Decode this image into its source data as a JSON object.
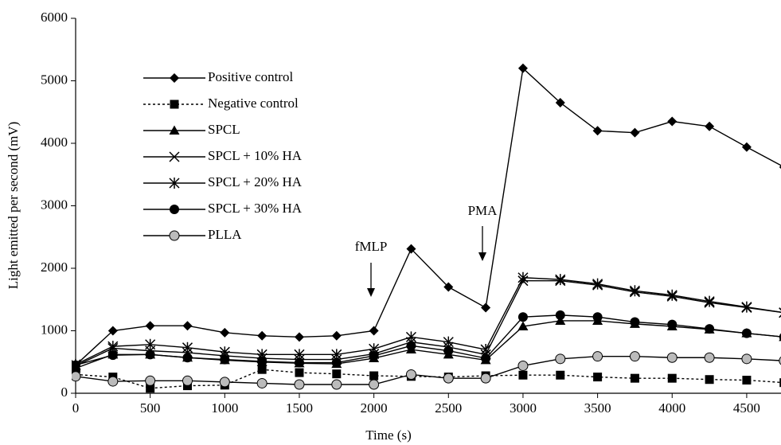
{
  "chart_data": {
    "type": "line",
    "x_label": "Time (s)",
    "y_label": "Light emitted per second (mV)",
    "x": [
      0,
      250,
      500,
      750,
      1000,
      1250,
      1500,
      1750,
      2000,
      2250,
      2500,
      2750,
      3000,
      3250,
      3500,
      3750,
      4000,
      4250,
      4500,
      4750
    ],
    "xlim": [
      0,
      4730
    ],
    "xticks": [
      0,
      500,
      1000,
      1500,
      2000,
      2500,
      3000,
      3500,
      4000,
      4500
    ],
    "ylim": [
      0,
      6000
    ],
    "yticks": [
      0,
      1000,
      2000,
      3000,
      4000,
      5000,
      6000
    ],
    "annotations": [
      "fMLP",
      "PMA"
    ],
    "legend": "upper left",
    "series": [
      {
        "name": "Positive control",
        "color": "#000000",
        "marker": "diamond",
        "line_style": "solid",
        "values": [
          450,
          1000,
          1080,
          1080,
          970,
          920,
          900,
          920,
          1000,
          2310,
          1700,
          1370,
          5200,
          4650,
          4200,
          4170,
          4350,
          4270,
          3940,
          3620
        ]
      },
      {
        "name": "Negative control",
        "color": "#000000",
        "marker": "square",
        "line_style": "dotted",
        "values": [
          300,
          260,
          80,
          120,
          130,
          380,
          330,
          310,
          280,
          270,
          260,
          280,
          290,
          290,
          260,
          240,
          240,
          220,
          210,
          170
        ]
      },
      {
        "name": "SPCL",
        "color": "#000000",
        "marker": "triangle",
        "line_style": "solid",
        "values": [
          400,
          620,
          620,
          570,
          530,
          500,
          480,
          470,
          560,
          700,
          620,
          530,
          1070,
          1160,
          1160,
          1110,
          1070,
          1020,
          960,
          900
        ]
      },
      {
        "name": "SPCL + 10% HA",
        "color": "#000000",
        "marker": "x",
        "line_style": "solid",
        "values": [
          440,
          720,
          680,
          650,
          600,
          560,
          540,
          540,
          630,
          820,
          740,
          620,
          1800,
          1800,
          1730,
          1620,
          1550,
          1450,
          1370,
          1290
        ]
      },
      {
        "name": "SPCL + 20% HA",
        "color": "#000000",
        "marker": "star",
        "line_style": "solid",
        "values": [
          460,
          750,
          780,
          730,
          660,
          620,
          620,
          620,
          710,
          900,
          820,
          700,
          1850,
          1820,
          1750,
          1640,
          1570,
          1470,
          1380,
          1290
        ]
      },
      {
        "name": "SPCL + 30% HA",
        "color": "#000000",
        "marker": "circle",
        "line_style": "solid",
        "values": [
          450,
          610,
          620,
          570,
          540,
          510,
          490,
          490,
          600,
          760,
          680,
          560,
          1220,
          1250,
          1220,
          1140,
          1100,
          1030,
          960,
          900
        ]
      },
      {
        "name": "PLLA",
        "color": "#000000",
        "marker": "circle-gray",
        "line_style": "solid",
        "values": [
          270,
          190,
          200,
          200,
          180,
          160,
          140,
          140,
          140,
          300,
          240,
          240,
          440,
          550,
          590,
          590,
          570,
          570,
          550,
          520
        ]
      }
    ]
  }
}
